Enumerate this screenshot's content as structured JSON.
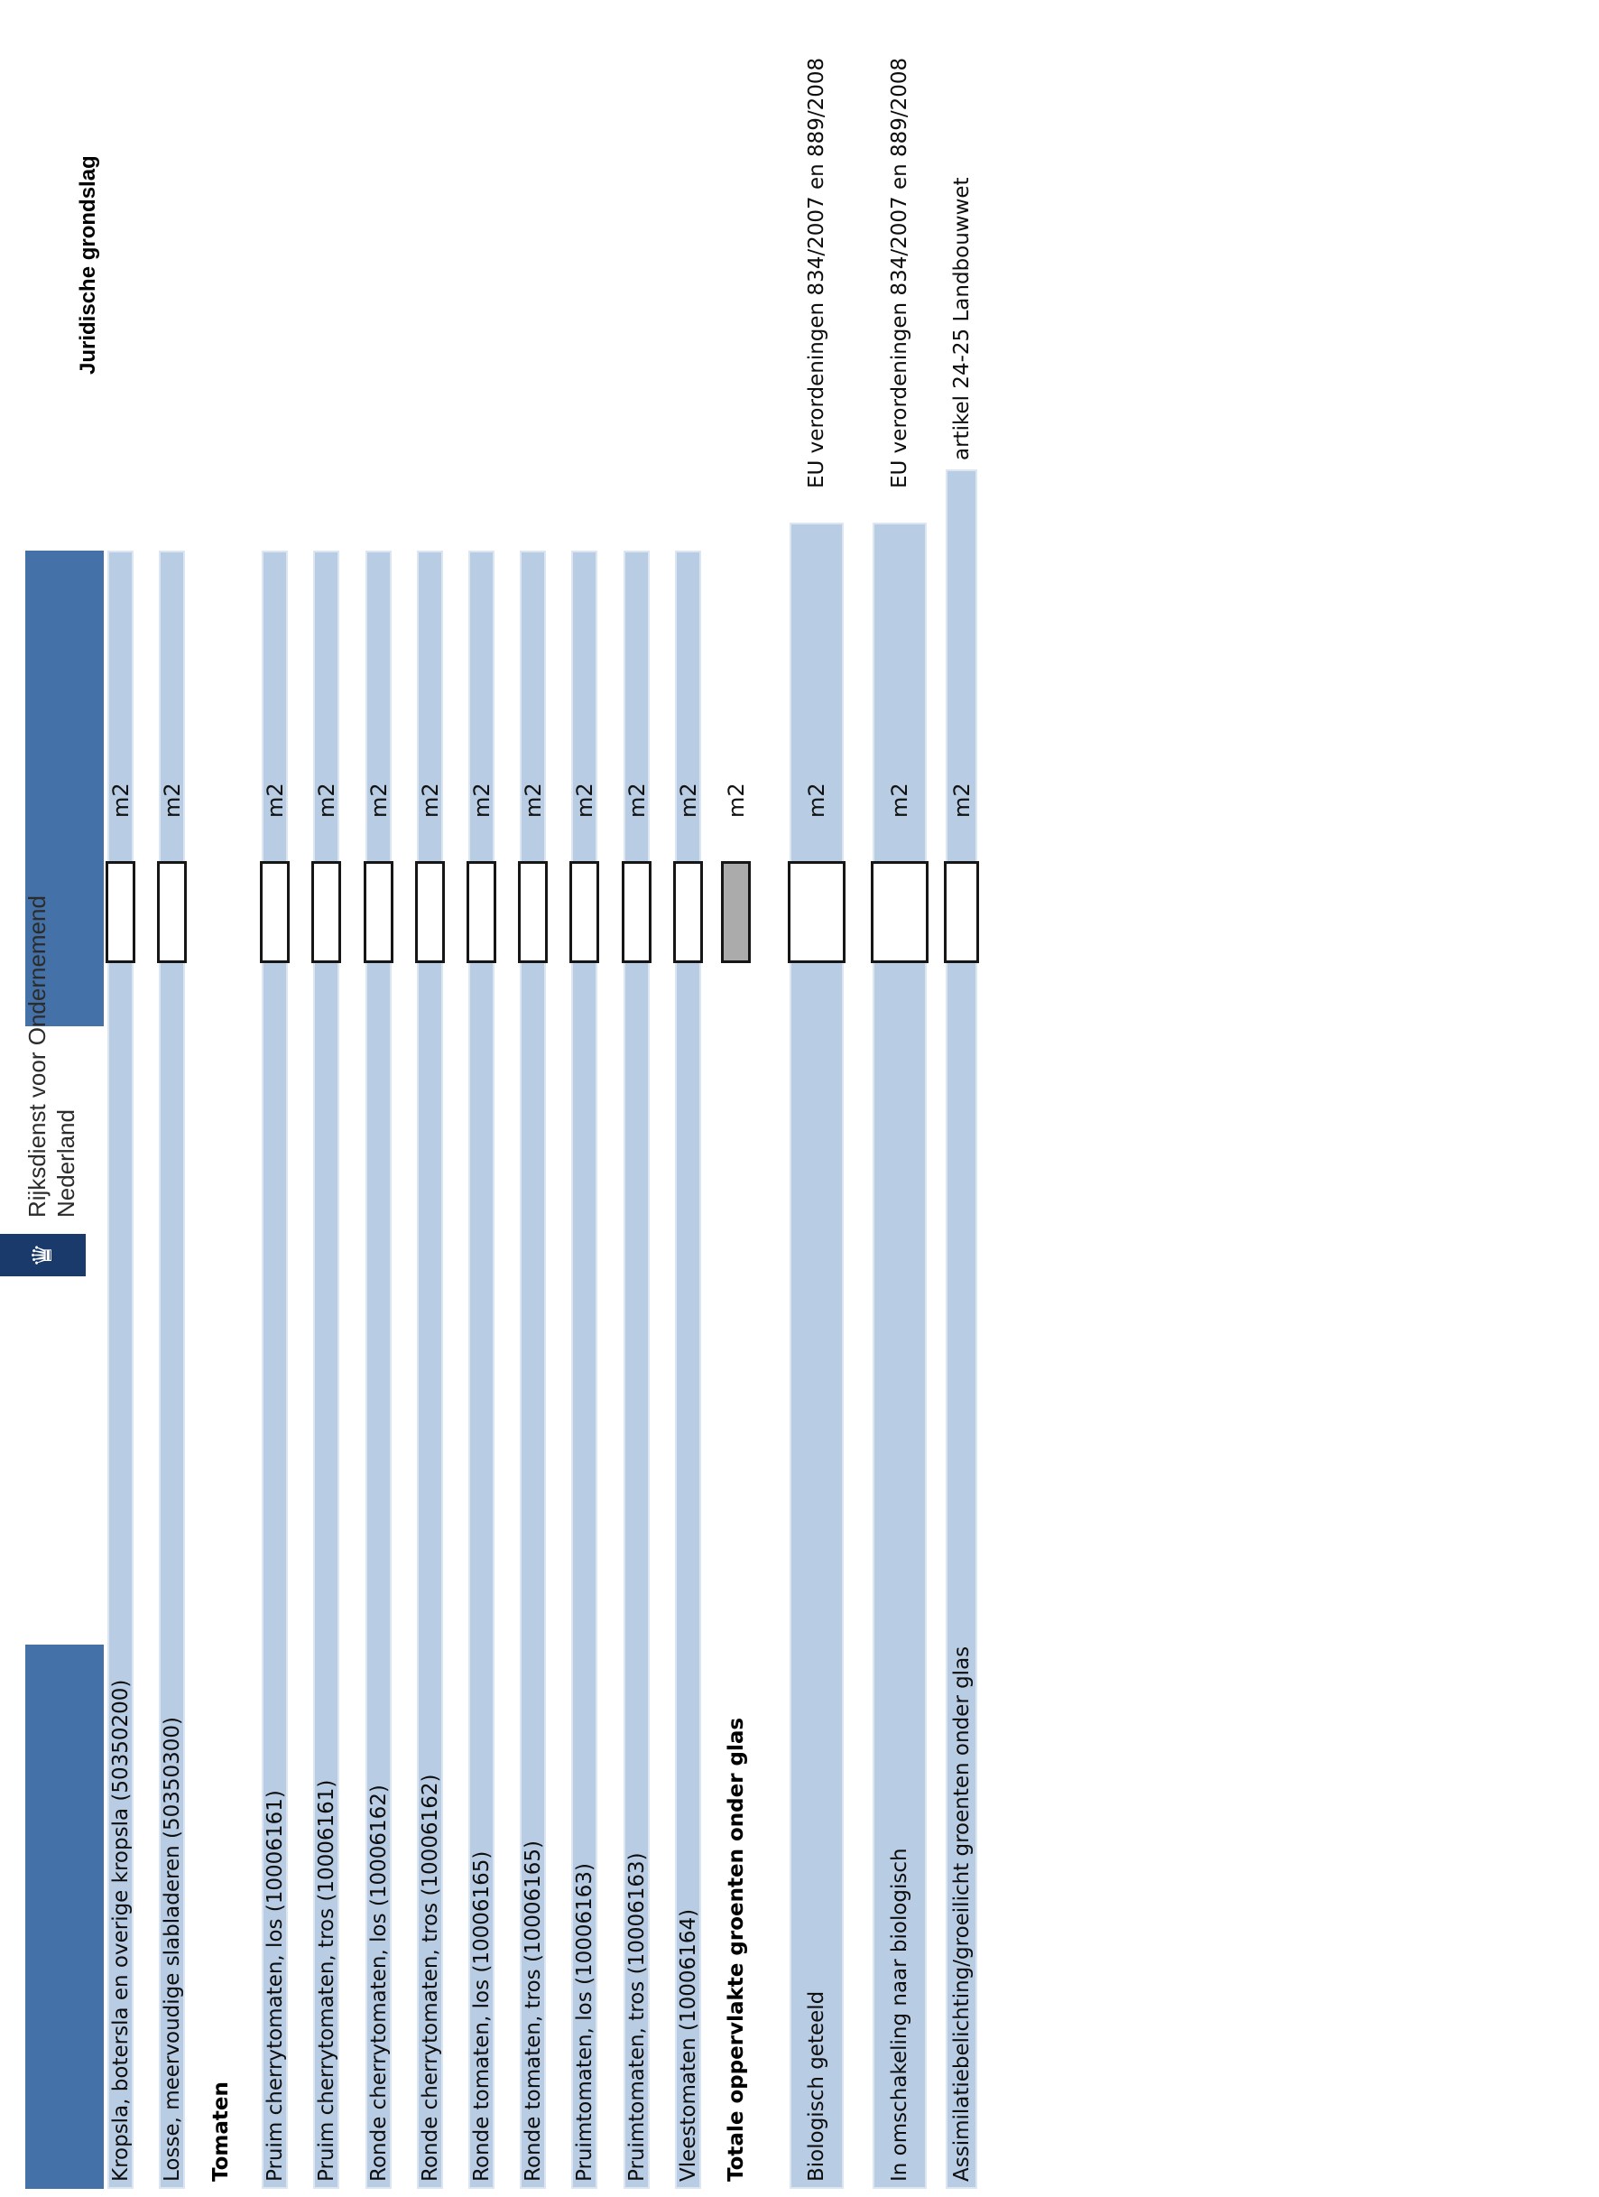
{
  "header": {
    "juridische_grondslag": "Juridische grondslag"
  },
  "logo": {
    "emblem_icon": "crown-icon",
    "org_line1": "Rijksdienst voor Ondernemend",
    "org_line2": "Nederland"
  },
  "units": {
    "m2_label": "m2"
  },
  "colors": {
    "stripe_blue": "#b8cce4",
    "header_bar_blue": "#4472a8",
    "emblem_navy": "#1a3a6b",
    "gray_box": "#ababab"
  },
  "rows": [
    {
      "label": "Kropsla, botersla en overige kropsla (50350200)",
      "type": "crop",
      "juridische": ""
    },
    {
      "label": "Losse, meervoudige slabladeren (50350300)",
      "type": "crop",
      "juridische": ""
    },
    {
      "label": "Tomaten",
      "type": "section",
      "juridische": ""
    },
    {
      "label": "Pruim cherrytomaten, los (10006161)",
      "type": "crop",
      "juridische": ""
    },
    {
      "label": "Pruim cherrytomaten, tros (10006161)",
      "type": "crop",
      "juridische": ""
    },
    {
      "label": "Ronde cherrytomaten, los (10006162)",
      "type": "crop",
      "juridische": ""
    },
    {
      "label": "Ronde cherrytomaten, tros (10006162)",
      "type": "crop",
      "juridische": ""
    },
    {
      "label": "Ronde tomaten, los (10006165)",
      "type": "crop",
      "juridische": ""
    },
    {
      "label": "Ronde tomaten, tros (10006165)",
      "type": "crop",
      "juridische": ""
    },
    {
      "label": "Pruimtomaten, los (10006163)",
      "type": "crop",
      "juridische": ""
    },
    {
      "label": "Pruimtomaten, tros (10006163)",
      "type": "crop",
      "juridische": ""
    },
    {
      "label": "Vleestomaten (10006164)",
      "type": "crop",
      "juridische": ""
    },
    {
      "label": "Totale oppervlakte groenten onder glas",
      "type": "total",
      "juridische": ""
    },
    {
      "label": "Biologisch geteeld",
      "type": "crop",
      "juridische": "EU verordeningen 834/2007 en 889/2008"
    },
    {
      "label": "In omschakeling naar biologisch",
      "type": "crop",
      "juridische": "EU verordeningen 834/2007 en 889/2008"
    },
    {
      "label": "Assimilatiebelichting/groeilicht groenten onder glas",
      "type": "crop",
      "juridische": "artikel 24-25 Landbouwwet"
    }
  ]
}
